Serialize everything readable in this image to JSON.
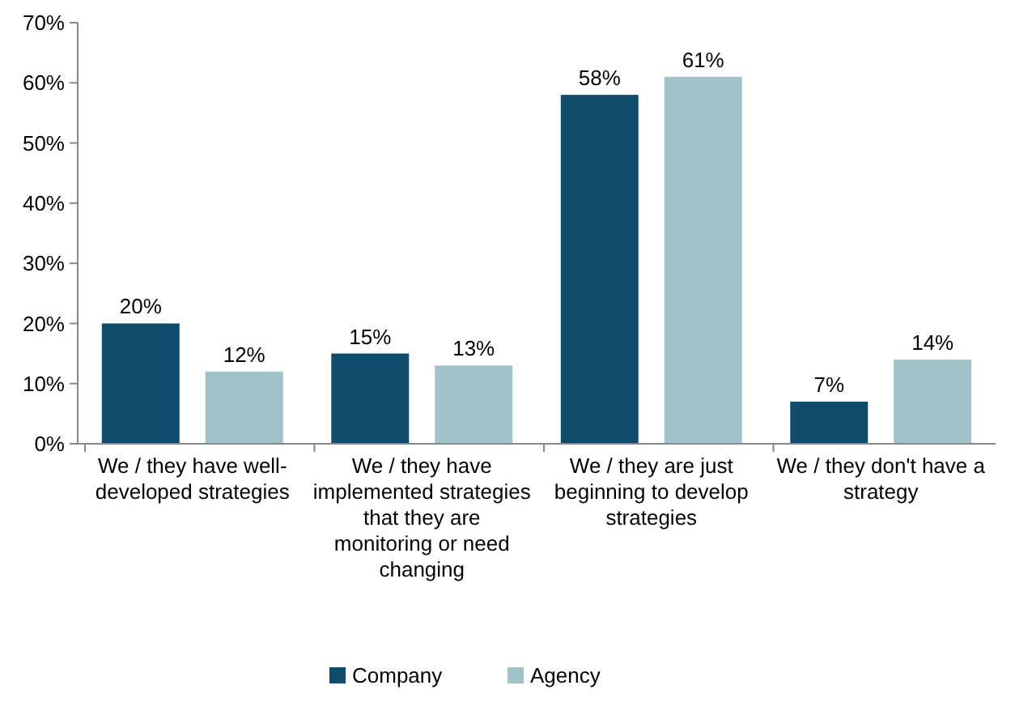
{
  "chart_data": {
    "type": "bar",
    "categories": [
      "We / they have well-developed strategies",
      "We / they have implemented strategies that they are monitoring or need changing",
      "We / they are just beginning to develop strategies",
      "We / they don't have a strategy"
    ],
    "series": [
      {
        "name": "Company",
        "color": "#0e4d6b",
        "values": [
          20,
          15,
          58,
          7
        ],
        "value_labels": [
          "20%",
          "15%",
          "58%",
          "7%"
        ]
      },
      {
        "name": "Agency",
        "color": "#9fc3c7",
        "values": [
          12,
          13,
          61,
          14
        ],
        "value_labels": [
          "12%",
          "13%",
          "61%",
          "14%"
        ]
      }
    ],
    "ylim": [
      0,
      70
    ],
    "yticks": [
      {
        "value": 0,
        "label": "0%"
      },
      {
        "value": 10,
        "label": "10%"
      },
      {
        "value": 20,
        "label": "20%"
      },
      {
        "value": 30,
        "label": "30%"
      },
      {
        "value": 40,
        "label": "40%"
      },
      {
        "value": 50,
        "label": "50%"
      },
      {
        "value": 60,
        "label": "60%"
      },
      {
        "value": 70,
        "label": "70%"
      }
    ],
    "grid": false,
    "legend": "bottom"
  }
}
